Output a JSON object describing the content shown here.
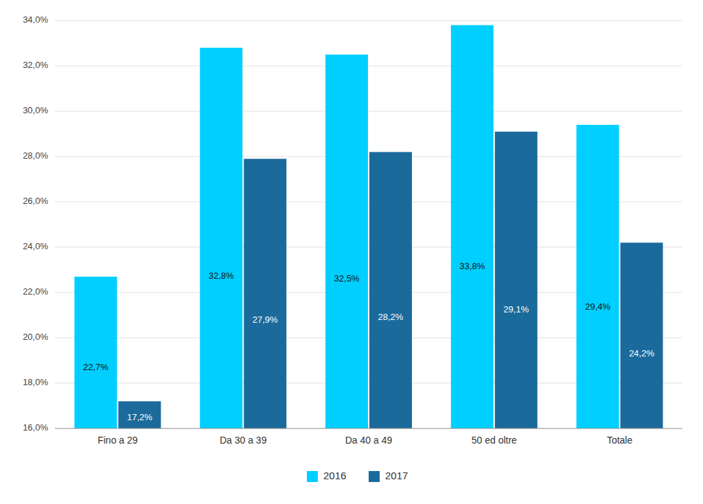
{
  "chart_data": {
    "type": "bar",
    "categories": [
      "Fino a 29",
      "Da 30 a 39",
      "Da 40 a 49",
      "50 ed oltre",
      "Totale"
    ],
    "series": [
      {
        "name": "2016",
        "color": "#00CFFF",
        "values": [
          22.7,
          32.8,
          32.5,
          33.8,
          29.4
        ],
        "value_labels": [
          "22,7%",
          "32,8%",
          "32,5%",
          "33,8%",
          "29,4%"
        ]
      },
      {
        "name": "2017",
        "color": "#1B6A9C",
        "values": [
          17.2,
          27.9,
          28.2,
          29.1,
          24.2
        ],
        "value_labels": [
          "17,2%",
          "27,9%",
          "28,2%",
          "29,1%",
          "24,2%"
        ]
      }
    ],
    "ylim": [
      16.0,
      34.0
    ],
    "yticks": [
      {
        "value": 16.0,
        "label": "16,0%"
      },
      {
        "value": 18.0,
        "label": "18,0%"
      },
      {
        "value": 20.0,
        "label": "20,0%"
      },
      {
        "value": 22.0,
        "label": "22,0%"
      },
      {
        "value": 24.0,
        "label": "24,0%"
      },
      {
        "value": 26.0,
        "label": "26,0%"
      },
      {
        "value": 28.0,
        "label": "28,0%"
      },
      {
        "value": 30.0,
        "label": "30,0%"
      },
      {
        "value": 32.0,
        "label": "32,0%"
      },
      {
        "value": 34.0,
        "label": "34,0%"
      }
    ],
    "grid": true,
    "data_labels": true,
    "legend": "bottom"
  }
}
